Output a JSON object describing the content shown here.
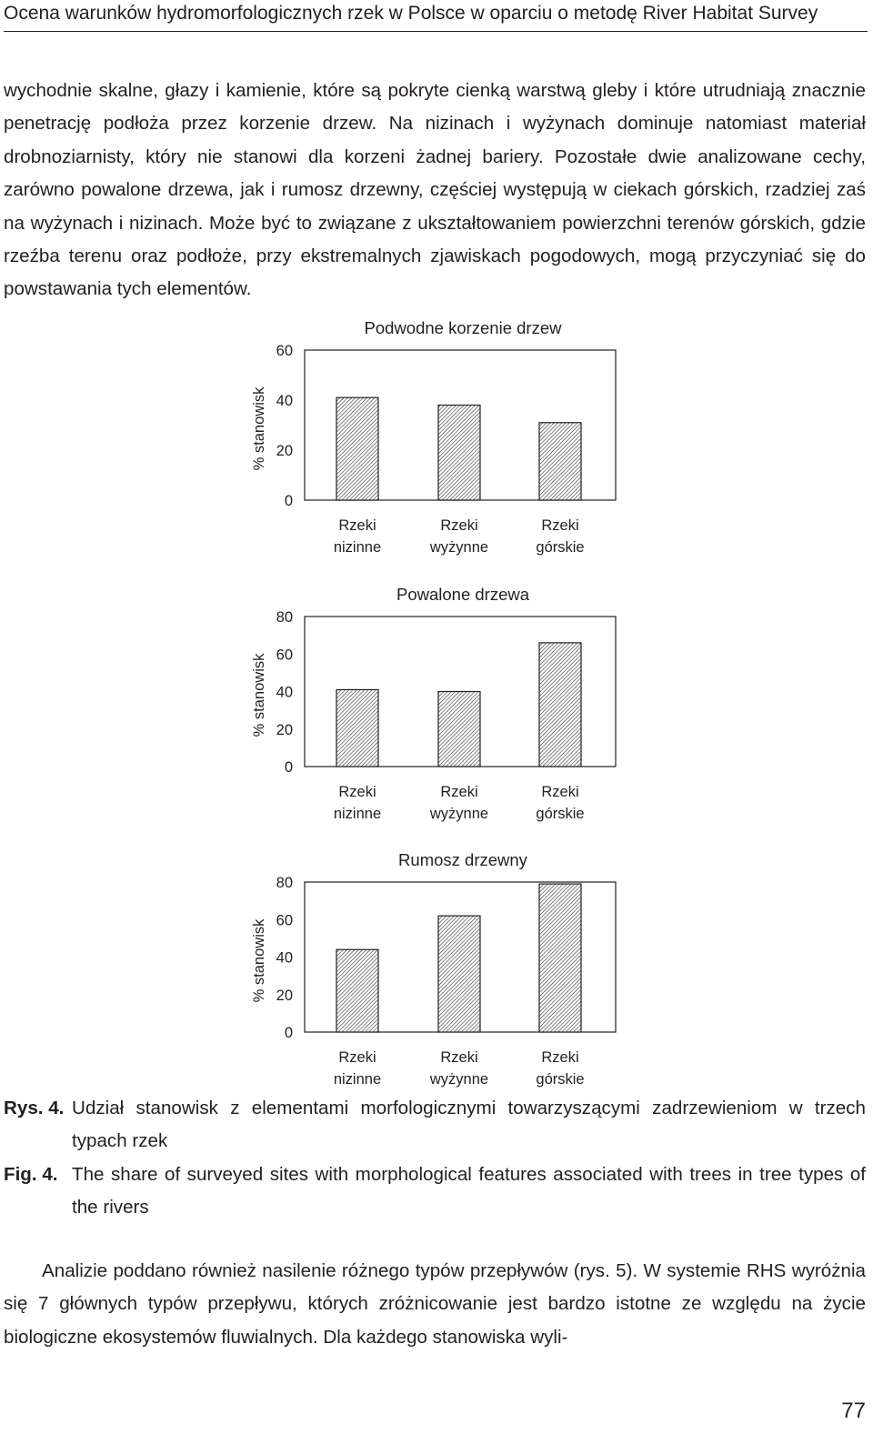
{
  "header": {
    "running_title": "Ocena warunków hydromorfologicznych rzek w Polsce w oparciu o metodę River Habitat Survey"
  },
  "paragraph1": "wychodnie skalne, głazy i kamienie, które są pokryte cienką warstwą gleby i które utrudniają znacznie penetrację podłoża przez korzenie drzew. Na nizinach i wyżynach dominuje natomiast materiał drobnoziarnisty, który nie stanowi dla korzeni żadnej bariery. Pozostałe dwie analizowane cechy, zarówno powalone drzewa, jak i rumosz drzewny, częściej występują w ciekach górskich, rzadziej zaś na wyżynach i nizinach. Może być to związane z ukształtowaniem powierzchni terenów górskich, gdzie rzeźba terenu oraz podłoże, przy ekstremalnych zjawiskach pogodowych, mogą przyczyniać się do powstawania tych elementów.",
  "chart_data": [
    {
      "type": "bar",
      "title": "Podwodne korzenie drzew",
      "ylabel": "% stanowisk",
      "categories": [
        [
          "Rzeki",
          "nizinne"
        ],
        [
          "Rzeki",
          "wyżynne"
        ],
        [
          "Rzeki",
          "górskie"
        ]
      ],
      "values": [
        41,
        38,
        31
      ],
      "ylim": [
        0,
        60
      ],
      "yticks": [
        0,
        20,
        40,
        60
      ],
      "grid": false,
      "bar_fill": "hatched"
    },
    {
      "type": "bar",
      "title": "Powalone drzewa",
      "ylabel": "% stanowisk",
      "categories": [
        [
          "Rzeki",
          "nizinne"
        ],
        [
          "Rzeki",
          "wyżynne"
        ],
        [
          "Rzeki",
          "górskie"
        ]
      ],
      "values": [
        41,
        40,
        66
      ],
      "ylim": [
        0,
        80
      ],
      "yticks": [
        0,
        20,
        40,
        60,
        80
      ],
      "grid": false,
      "bar_fill": "hatched"
    },
    {
      "type": "bar",
      "title": "Rumosz drzewny",
      "ylabel": "% stanowisk",
      "categories": [
        [
          "Rzeki",
          "nizinne"
        ],
        [
          "Rzeki",
          "wyżynne"
        ],
        [
          "Rzeki",
          "górskie"
        ]
      ],
      "values": [
        44,
        62,
        79
      ],
      "ylim": [
        0,
        80
      ],
      "yticks": [
        0,
        20,
        40,
        60,
        80
      ],
      "grid": false,
      "bar_fill": "hatched"
    }
  ],
  "captions": {
    "pl_label": "Rys. 4.",
    "pl_text": "Udział stanowisk z elementami morfologicznymi towarzyszącymi zadrzewieniom w trzech typach rzek",
    "en_label": "Fig. 4.",
    "en_text": "The share of surveyed sites with morphological features associated with trees in tree types of the rivers"
  },
  "paragraph2": "Analizie poddano również nasilenie różnego typów przepływów (rys. 5). W systemie RHS wyróżnia się 7 głównych typów przepływu, których zróżnicowanie jest bardzo istotne ze względu na życie biologiczne ekosystemów fluwialnych. Dla każdego stanowiska wyli-",
  "page_number": "77",
  "colors": {
    "text": "#231f20",
    "bar_stroke": "#231f20",
    "hatch": "#231f20"
  }
}
